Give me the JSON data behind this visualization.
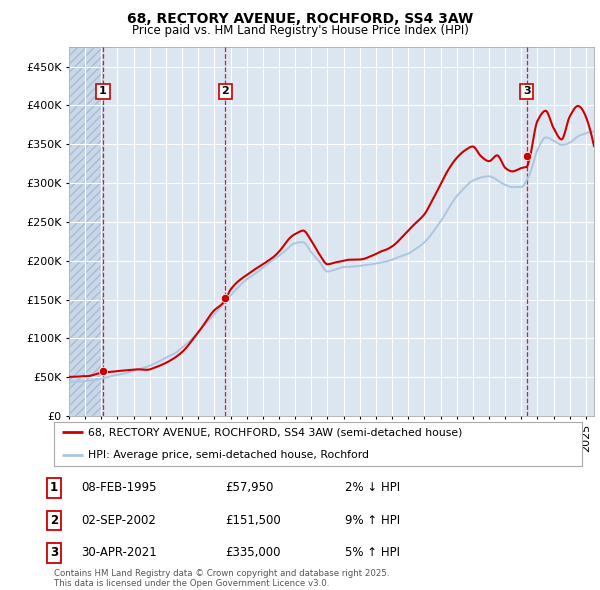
{
  "title_line1": "68, RECTORY AVENUE, ROCHFORD, SS4 3AW",
  "title_line2": "Price paid vs. HM Land Registry's House Price Index (HPI)",
  "background_color": "#ffffff",
  "plot_bg_color": "#dce6f1",
  "grid_color": "#ffffff",
  "hpi_line_color": "#adc6e0",
  "price_line_color": "#cc0000",
  "sale_marker_color": "#cc0000",
  "ylim": [
    0,
    475000
  ],
  "yticks": [
    0,
    50000,
    100000,
    150000,
    200000,
    250000,
    300000,
    350000,
    400000,
    450000
  ],
  "ytick_labels": [
    "£0",
    "£50K",
    "£100K",
    "£150K",
    "£200K",
    "£250K",
    "£300K",
    "£350K",
    "£400K",
    "£450K"
  ],
  "xmin": 1993,
  "xmax": 2025.5,
  "sale_dates": [
    1995.1,
    2002.67,
    2021.33
  ],
  "sale_prices": [
    57950,
    151500,
    335000
  ],
  "sale_labels": [
    "1",
    "2",
    "3"
  ],
  "sale_info": [
    {
      "label": "1",
      "date": "08-FEB-1995",
      "price": "£57,950",
      "pct": "2% ↓ HPI"
    },
    {
      "label": "2",
      "date": "02-SEP-2002",
      "price": "£151,500",
      "pct": "9% ↑ HPI"
    },
    {
      "label": "3",
      "date": "30-APR-2021",
      "price": "£335,000",
      "pct": "5% ↑ HPI"
    }
  ],
  "legend_line1": "68, RECTORY AVENUE, ROCHFORD, SS4 3AW (semi-detached house)",
  "legend_line2": "HPI: Average price, semi-detached house, Rochford",
  "footnote": "Contains HM Land Registry data © Crown copyright and database right 2025.\nThis data is licensed under the Open Government Licence v3.0."
}
